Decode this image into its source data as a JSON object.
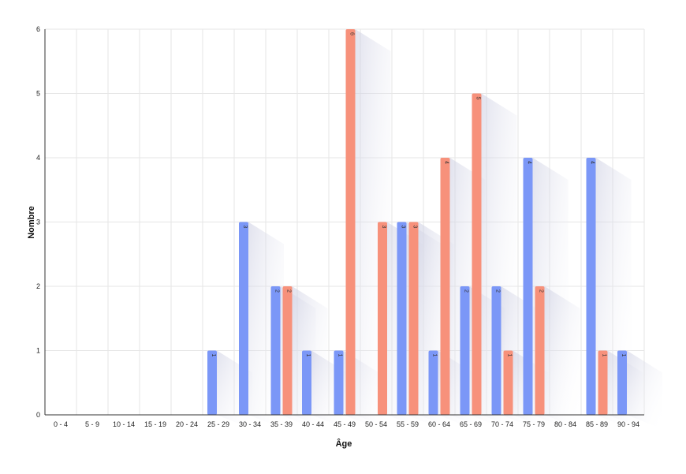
{
  "chart_data": {
    "type": "bar",
    "xlabel": "Âge",
    "ylabel": "Nombre",
    "categories": [
      "0 - 4",
      "5 - 9",
      "10 - 14",
      "15 - 19",
      "20 - 24",
      "25 - 29",
      "30 - 34",
      "35 - 39",
      "40 - 44",
      "45 - 49",
      "50 - 54",
      "55 - 59",
      "60 - 64",
      "65 - 69",
      "70 - 74",
      "75 - 79",
      "80 - 84",
      "85 - 89",
      "90 - 94"
    ],
    "y_ticks": [
      "0",
      "1",
      "2",
      "3",
      "4",
      "5",
      "6"
    ],
    "ylim": [
      0,
      6
    ],
    "grid": true,
    "series": [
      {
        "color": "#7b97f7",
        "values": [
          0,
          0,
          0,
          0,
          0,
          1,
          3,
          2,
          1,
          1,
          0,
          3,
          1,
          2,
          2,
          4,
          0,
          4,
          1
        ]
      },
      {
        "color": "#f7917b",
        "values": [
          0,
          0,
          0,
          0,
          0,
          0,
          0,
          2,
          0,
          6,
          3,
          3,
          4,
          5,
          1,
          2,
          0,
          1,
          0
        ]
      }
    ]
  }
}
